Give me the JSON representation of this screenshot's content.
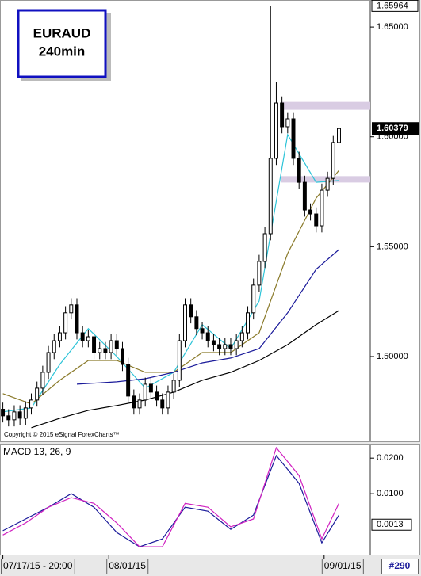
{
  "chart_data": [
    {
      "type": "candlestick",
      "title": "EURAUD",
      "subtitle": "240min",
      "annotation": "Copyright © 2015 eSignal ForexCharts™",
      "open": [
        1.476,
        1.473,
        1.4712,
        1.4748,
        1.4719,
        1.4766,
        1.4802,
        1.4856,
        1.4928,
        1.5018,
        1.5072,
        1.5108,
        1.5199,
        1.5235,
        1.5108,
        1.5072,
        1.509,
        1.5018,
        1.5036,
        1.5018,
        1.5072,
        1.5036,
        1.4964,
        1.482,
        1.4766,
        1.4802,
        1.4874,
        1.4838,
        1.4802,
        1.4766,
        1.4838,
        1.4892,
        1.5072,
        1.5235,
        1.5181,
        1.5127,
        1.5108,
        1.5072,
        1.5054,
        1.5036,
        1.5054,
        1.5036,
        1.5072,
        1.5108,
        1.5199,
        1.5325,
        1.5433,
        1.5559,
        1.5902,
        1.6154,
        1.6046,
        1.6082,
        1.5902,
        1.5793,
        1.5667,
        1.5649,
        1.5595,
        1.5757,
        1.5811,
        1.5974
      ],
      "high": [
        1.479,
        1.476,
        1.4778,
        1.4778,
        1.4796,
        1.4832,
        1.4886,
        1.4958,
        1.5048,
        1.5102,
        1.5138,
        1.5229,
        1.5265,
        1.5265,
        1.5138,
        1.512,
        1.512,
        1.5066,
        1.5066,
        1.5102,
        1.5102,
        1.5066,
        1.4994,
        1.485,
        1.4832,
        1.4904,
        1.4904,
        1.4868,
        1.4832,
        1.4868,
        1.4922,
        1.5102,
        1.5265,
        1.5265,
        1.5211,
        1.5157,
        1.5138,
        1.5102,
        1.5084,
        1.5084,
        1.5084,
        1.5102,
        1.5138,
        1.5229,
        1.5355,
        1.5463,
        1.5589,
        1.65964,
        1.625,
        1.6184,
        1.6112,
        1.6112,
        1.5932,
        1.5823,
        1.5697,
        1.5679,
        1.5787,
        1.5841,
        1.6004,
        1.614
      ],
      "low": [
        1.47,
        1.4682,
        1.4682,
        1.4689,
        1.4689,
        1.4736,
        1.4772,
        1.4826,
        1.4898,
        1.4988,
        1.5042,
        1.5078,
        1.5169,
        1.5078,
        1.5042,
        1.5042,
        1.4988,
        1.4988,
        1.4988,
        1.4988,
        1.5006,
        1.4934,
        1.479,
        1.4736,
        1.4736,
        1.4772,
        1.4808,
        1.4772,
        1.4736,
        1.4736,
        1.4808,
        1.4862,
        1.5042,
        1.5151,
        1.5097,
        1.5078,
        1.5042,
        1.5024,
        1.5006,
        1.5006,
        1.5006,
        1.5006,
        1.5042,
        1.5078,
        1.5169,
        1.5295,
        1.5403,
        1.5529,
        1.5872,
        1.6016,
        1.6016,
        1.5872,
        1.5763,
        1.5637,
        1.5619,
        1.5565,
        1.5565,
        1.5727,
        1.5781,
        1.5944
      ],
      "close": [
        1.473,
        1.4712,
        1.4748,
        1.4719,
        1.4766,
        1.4802,
        1.4856,
        1.4928,
        1.5018,
        1.5072,
        1.5108,
        1.5199,
        1.5235,
        1.5108,
        1.5072,
        1.509,
        1.5018,
        1.5036,
        1.5018,
        1.5072,
        1.5036,
        1.4964,
        1.482,
        1.4766,
        1.4802,
        1.4874,
        1.4838,
        1.4802,
        1.4766,
        1.4838,
        1.4892,
        1.5072,
        1.5235,
        1.5181,
        1.5127,
        1.5108,
        1.5072,
        1.5054,
        1.5036,
        1.5054,
        1.5036,
        1.5072,
        1.5108,
        1.5199,
        1.5325,
        1.5433,
        1.5559,
        1.5902,
        1.6154,
        1.6046,
        1.6082,
        1.5902,
        1.5793,
        1.5667,
        1.5649,
        1.5595,
        1.5757,
        1.5811,
        1.5974,
        1.60379
      ],
      "series": [
        {
          "color": "#2ec4d8",
          "x": [
            0,
            5,
            10,
            15,
            20,
            25,
            30,
            35,
            40,
            45,
            50,
            55,
            59
          ],
          "values": [
            1.4748,
            1.4766,
            1.4964,
            1.5127,
            1.5,
            1.4856,
            1.4928,
            1.5145,
            1.5036,
            1.5253,
            1.601,
            1.5793,
            1.5801
          ]
        },
        {
          "color": "#8a7a2a",
          "x": [
            0,
            5,
            10,
            15,
            20,
            25,
            30,
            35,
            40,
            45,
            50,
            55,
            59
          ],
          "values": [
            1.4831,
            1.4784,
            1.4892,
            1.4982,
            1.4982,
            1.4928,
            1.4928,
            1.5018,
            1.5018,
            1.5108,
            1.5469,
            1.5721,
            1.5847
          ]
        },
        {
          "color": "#1a1a9a",
          "x": [
            13,
            20,
            25,
            30,
            35,
            40,
            45,
            50,
            55,
            59
          ],
          "values": [
            1.4874,
            1.4885,
            1.4899,
            1.4928,
            1.4971,
            1.4993,
            1.5036,
            1.5199,
            1.5397,
            1.5487
          ]
        },
        {
          "color": "#000000",
          "x": [
            5,
            10,
            15,
            20,
            25,
            30,
            35,
            40,
            45,
            50,
            55,
            59
          ],
          "values": [
            1.4676,
            1.4719,
            1.4755,
            1.4777,
            1.4802,
            1.4838,
            1.4892,
            1.4928,
            1.4982,
            1.5054,
            1.5145,
            1.5209
          ]
        }
      ],
      "zones": [
        {
          "from": 1.6123,
          "to": 1.6159
        },
        {
          "from": 1.5792,
          "to": 1.5821
        }
      ],
      "zone_color": "#d9cce3",
      "max_price": 1.65964,
      "last_price": 1.60379,
      "xlim": [
        -0.5,
        64.5
      ],
      "ylim": [
        1.4614,
        1.6623
      ],
      "yticks": [
        {
          "value": 1.65,
          "label": "1.65000"
        },
        {
          "value": 1.6,
          "label": "1.60000"
        },
        {
          "value": 1.55,
          "label": "1.55000"
        },
        {
          "value": 1.5,
          "label": "1.50000"
        }
      ],
      "xticks": [
        {
          "value": 0,
          "label": "07/17/15 - 20:00"
        },
        {
          "value": 18.6,
          "label": "08/01/15"
        },
        {
          "value": 56.4,
          "label": "09/01/15"
        }
      ],
      "counter": "#290",
      "grid": false
    },
    {
      "type": "line",
      "title": "MACD 13, 26, 9",
      "series": [
        {
          "color": "#1a1a9a",
          "x": [
            0,
            4,
            8,
            12,
            16,
            20,
            24,
            28,
            32,
            36,
            40,
            44,
            48,
            52,
            56,
            59
          ],
          "values": [
            -0.0004,
            0.0029,
            0.0062,
            0.01,
            0.0062,
            -0.0009,
            -0.0049,
            -0.0027,
            0.0062,
            0.0051,
            0.0,
            0.004,
            0.0207,
            0.0129,
            -0.0038,
            0.004
          ]
        },
        {
          "color": "#d020c0",
          "x": [
            0,
            4,
            8,
            12,
            16,
            20,
            24,
            28,
            32,
            36,
            40,
            44,
            48,
            52,
            56,
            59
          ],
          "values": [
            -0.0016,
            0.0018,
            0.0062,
            0.0089,
            0.0073,
            0.0018,
            -0.0049,
            -0.0049,
            0.0073,
            0.0062,
            0.0007,
            0.0029,
            0.0229,
            0.0151,
            -0.0027,
            0.0073
          ]
        }
      ],
      "xlim": [
        -0.5,
        64.5
      ],
      "ylim": [
        -0.0071,
        0.0236
      ],
      "yticks": [
        {
          "value": 0.02,
          "label": "0.0200"
        },
        {
          "value": 0.01,
          "label": "0.0100"
        }
      ],
      "last_value": {
        "value": 0.0013,
        "label": "0.0013"
      },
      "grid": false
    }
  ]
}
